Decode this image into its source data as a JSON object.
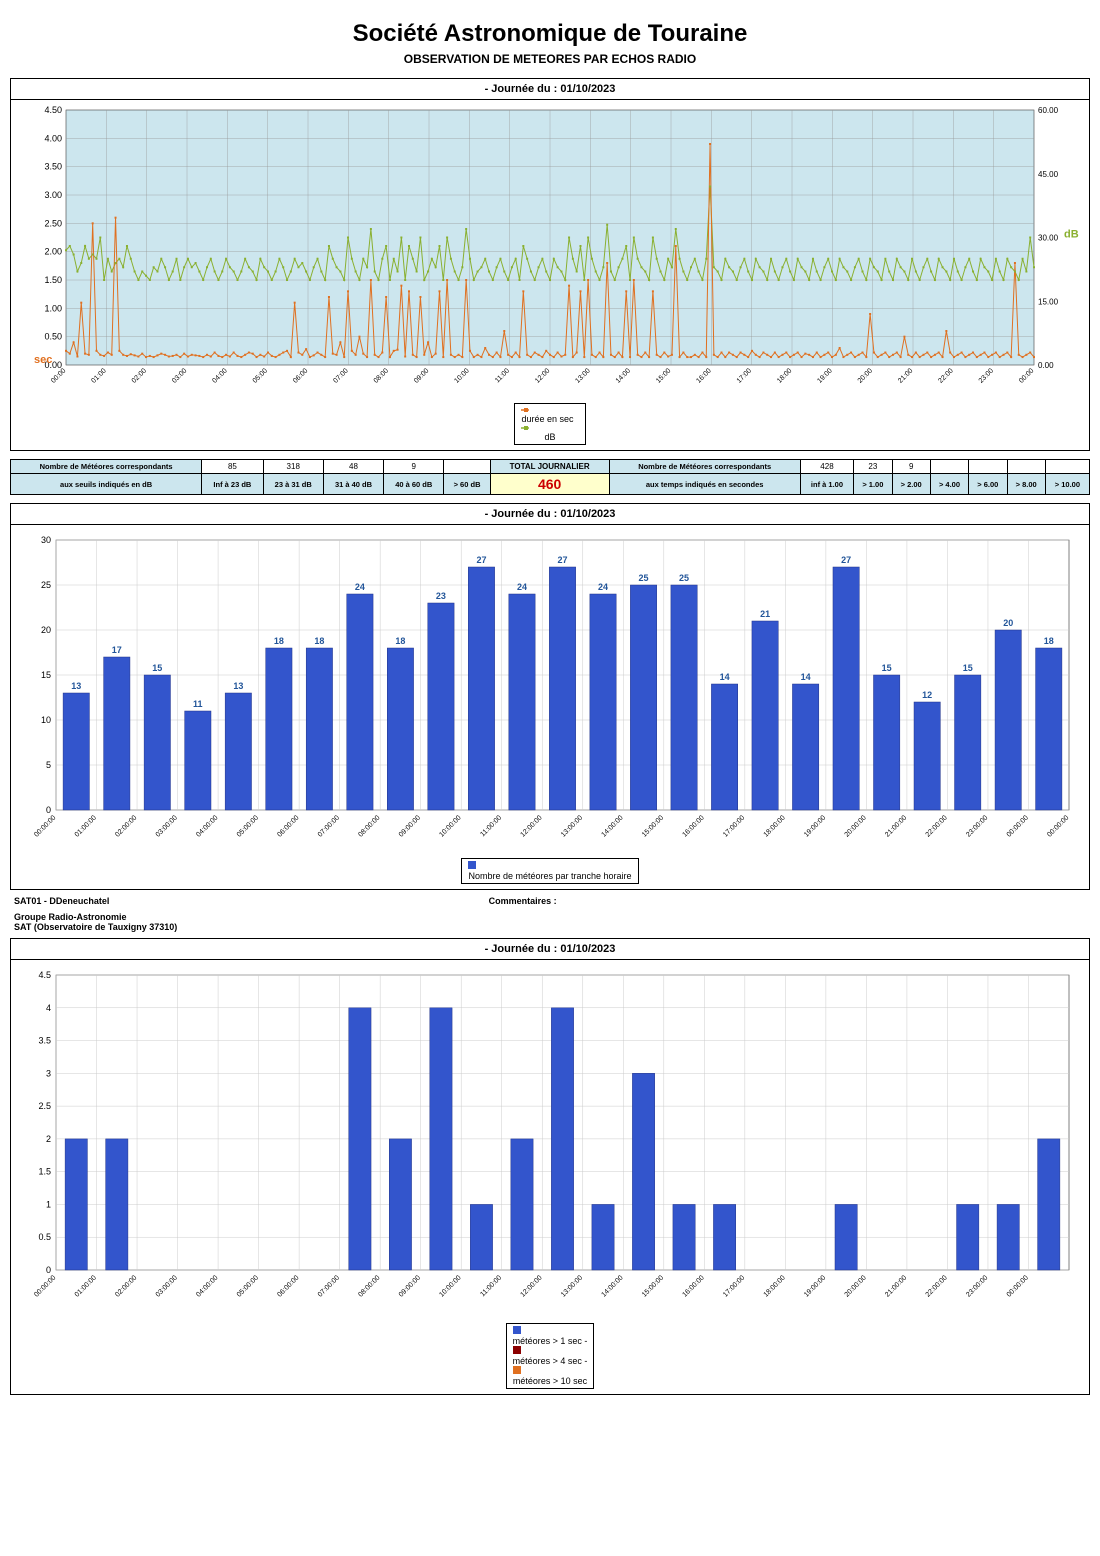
{
  "header": {
    "title": "Société Astronomique de Touraine",
    "subtitle": "OBSERVATION DE METEORES PAR ECHOS RADIO",
    "date_label": "- Journée du :   01/10/2023"
  },
  "colors": {
    "panel_bg": "#cce6ee",
    "grid": "#888888",
    "orange": "#e07020",
    "green": "#8ab030",
    "blue_bar": "#3355cc",
    "dark_red": "#8b0000",
    "border": "#000000"
  },
  "chart1": {
    "left_axis_label": "sec",
    "right_axis_label": "dB",
    "left_ylim": [
      0,
      4.5
    ],
    "left_ticks": [
      0,
      0.5,
      1,
      1.5,
      2,
      2.5,
      3,
      3.5,
      4,
      4.5
    ],
    "right_ylim": [
      0,
      60
    ],
    "right_ticks": [
      0,
      15,
      30,
      45,
      60
    ],
    "x_labels": [
      "00:00",
      "01:00",
      "02:00",
      "03:00",
      "04:00",
      "05:00",
      "06:00",
      "07:00",
      "08:00",
      "09:00",
      "10:00",
      "11:00",
      "12:00",
      "13:00",
      "14:00",
      "15:00",
      "16:00",
      "17:00",
      "18:00",
      "19:00",
      "20:00",
      "21:00",
      "22:00",
      "23:00",
      "00:00"
    ],
    "legend": [
      "durée en sec",
      "dB"
    ],
    "series_sec": [
      0.25,
      0.2,
      0.4,
      0.15,
      1.1,
      0.2,
      0.18,
      2.5,
      0.25,
      0.18,
      0.16,
      0.22,
      0.18,
      2.6,
      0.25,
      0.18,
      0.16,
      0.19,
      0.17,
      0.15,
      0.2,
      0.14,
      0.16,
      0.14,
      0.17,
      0.2,
      0.18,
      0.15,
      0.16,
      0.18,
      0.14,
      0.2,
      0.15,
      0.18,
      0.17,
      0.16,
      0.14,
      0.18,
      0.15,
      0.22,
      0.16,
      0.14,
      0.18,
      0.15,
      0.22,
      0.16,
      0.14,
      0.18,
      0.22,
      0.2,
      0.14,
      0.18,
      0.15,
      0.22,
      0.16,
      0.14,
      0.18,
      0.22,
      0.25,
      0.14,
      1.1,
      0.22,
      0.18,
      0.28,
      0.14,
      0.17,
      0.22,
      0.18,
      0.14,
      1.2,
      0.2,
      0.18,
      0.4,
      0.14,
      1.3,
      0.25,
      0.18,
      0.5,
      0.2,
      0.14,
      1.5,
      0.18,
      0.14,
      0.22,
      1.2,
      0.14,
      0.25,
      0.27,
      1.4,
      0.15,
      1.3,
      0.18,
      0.14,
      1.2,
      0.18,
      0.4,
      0.14,
      0.2,
      1.3,
      0.14,
      1.5,
      0.18,
      0.14,
      0.18,
      0.14,
      1.5,
      0.25,
      0.14,
      0.18,
      0.14,
      0.3,
      0.18,
      0.14,
      0.22,
      0.14,
      0.6,
      0.18,
      0.14,
      0.22,
      0.14,
      1.3,
      0.18,
      0.14,
      0.22,
      0.18,
      0.14,
      0.25,
      0.18,
      0.14,
      0.22,
      0.15,
      0.18,
      1.4,
      0.14,
      0.22,
      1.3,
      0.14,
      1.5,
      0.18,
      0.14,
      0.22,
      0.14,
      1.8,
      0.18,
      0.14,
      0.22,
      0.14,
      1.3,
      0.14,
      1.5,
      0.18,
      0.14,
      0.22,
      0.14,
      1.3,
      0.18,
      0.14,
      0.22,
      0.15,
      0.18,
      2.1,
      0.14,
      0.22,
      0.14,
      0.14,
      0.18,
      0.14,
      0.22,
      0.14,
      3.9,
      0.18,
      0.14,
      0.22,
      0.14,
      0.22,
      0.18,
      0.14,
      0.22,
      0.18,
      0.14,
      0.25,
      0.18,
      0.14,
      0.22,
      0.18,
      0.14,
      0.22,
      0.14,
      0.18,
      0.22,
      0.14,
      0.18,
      0.22,
      0.14,
      0.2,
      0.18,
      0.14,
      0.22,
      0.14,
      0.18,
      0.22,
      0.14,
      0.18,
      0.3,
      0.14,
      0.18,
      0.22,
      0.14,
      0.18,
      0.22,
      0.14,
      0.9,
      0.22,
      0.14,
      0.18,
      0.22,
      0.14,
      0.18,
      0.22,
      0.14,
      0.5,
      0.18,
      0.14,
      0.22,
      0.14,
      0.18,
      0.22,
      0.14,
      0.18,
      0.22,
      0.14,
      0.6,
      0.22,
      0.14,
      0.18,
      0.22,
      0.14,
      0.18,
      0.22,
      0.14,
      0.18,
      0.22,
      0.14,
      0.18,
      0.22,
      0.14,
      0.18,
      0.22,
      0.14,
      1.8,
      0.18,
      0.14,
      0.18,
      0.22,
      0.14
    ],
    "series_db": [
      27,
      28,
      26,
      22,
      24,
      28,
      25,
      26,
      25,
      30,
      20,
      25,
      22,
      24,
      25,
      23,
      28,
      25,
      22,
      20,
      22,
      21,
      20,
      23,
      22,
      25,
      23,
      20,
      22,
      25,
      20,
      23,
      25,
      23,
      24,
      22,
      20,
      23,
      25,
      22,
      20,
      22,
      25,
      23,
      22,
      20,
      22,
      25,
      23,
      22,
      20,
      25,
      23,
      22,
      20,
      22,
      25,
      23,
      20,
      22,
      25,
      23,
      24,
      22,
      20,
      23,
      25,
      22,
      20,
      28,
      25,
      23,
      22,
      20,
      30,
      25,
      22,
      20,
      25,
      23,
      32,
      22,
      20,
      25,
      28,
      20,
      25,
      22,
      30,
      20,
      28,
      25,
      22,
      30,
      20,
      22,
      25,
      23,
      28,
      20,
      30,
      25,
      22,
      20,
      23,
      32,
      25,
      20,
      22,
      23,
      25,
      22,
      20,
      23,
      25,
      22,
      20,
      23,
      25,
      20,
      28,
      25,
      22,
      20,
      23,
      25,
      22,
      20,
      25,
      23,
      22,
      20,
      30,
      25,
      22,
      28,
      20,
      30,
      25,
      22,
      20,
      23,
      33,
      22,
      20,
      23,
      25,
      28,
      20,
      30,
      25,
      23,
      22,
      20,
      30,
      25,
      22,
      20,
      25,
      23,
      32,
      25,
      22,
      20,
      23,
      25,
      22,
      20,
      25,
      42,
      23,
      22,
      20,
      25,
      23,
      22,
      20,
      23,
      25,
      22,
      20,
      25,
      23,
      22,
      20,
      25,
      22,
      20,
      23,
      25,
      22,
      20,
      25,
      23,
      22,
      20,
      25,
      22,
      20,
      23,
      25,
      22,
      20,
      25,
      23,
      22,
      20,
      23,
      25,
      22,
      20,
      25,
      23,
      22,
      20,
      25,
      22,
      20,
      25,
      23,
      22,
      20,
      25,
      22,
      20,
      23,
      25,
      22,
      20,
      25,
      23,
      22,
      20,
      25,
      22,
      20,
      23,
      25,
      22,
      20,
      25,
      23,
      22,
      20,
      25,
      22,
      20,
      25,
      23,
      22,
      20,
      25,
      22,
      30,
      23
    ]
  },
  "stats": {
    "left_header1": "Nombre de Météores correspondants",
    "left_header2": "aux seuils indiqués en dB",
    "db_cols": [
      "Inf à 23 dB",
      "23 à 31 dB",
      "31 à 40 dB",
      "40 à 60 dB",
      "> 60 dB"
    ],
    "db_vals": [
      "85",
      "318",
      "48",
      "9",
      ""
    ],
    "total_label": "TOTAL JOURNALIER",
    "total_val": "460",
    "right_header1": "Nombre de Météores correspondants",
    "right_header2": "aux temps indiqués en secondes",
    "sec_cols": [
      "inf à 1.00",
      "> 1.00",
      "> 2.00",
      "> 4.00",
      "> 6.00",
      "> 8.00",
      "> 10.00"
    ],
    "sec_vals": [
      "428",
      "23",
      "9",
      "",
      "",
      "",
      ""
    ]
  },
  "chart2": {
    "ylim": [
      0,
      30
    ],
    "yticks": [
      0,
      5,
      10,
      15,
      20,
      25,
      30
    ],
    "x_labels": [
      "00:00:00",
      "01:00:00",
      "02:00:00",
      "03:00:00",
      "04:00:00",
      "05:00:00",
      "06:00:00",
      "07:00:00",
      "08:00:00",
      "09:00:00",
      "10:00:00",
      "11:00:00",
      "12:00:00",
      "13:00:00",
      "14:00:00",
      "15:00:00",
      "16:00:00",
      "17:00:00",
      "18:00:00",
      "19:00:00",
      "20:00:00",
      "21:00:00",
      "22:00:00",
      "23:00:00",
      "00:00:00"
    ],
    "values": [
      13,
      17,
      15,
      11,
      13,
      18,
      18,
      24,
      18,
      23,
      27,
      24,
      27,
      24,
      25,
      25,
      14,
      21,
      14,
      27,
      15,
      12,
      15,
      20,
      18
    ],
    "legend": "Nombre de météores par tranche horaire"
  },
  "footer": {
    "author": "SAT01 - DDeneuchatel",
    "group1": "Groupe Radio-Astronomie",
    "group2": "SAT (Observatoire de Tauxigny 37310)",
    "comments_label": "Commentaires :"
  },
  "chart3": {
    "ylim": [
      0,
      4.5
    ],
    "yticks": [
      0,
      0.5,
      1,
      1.5,
      2,
      2.5,
      3,
      3.5,
      4,
      4.5
    ],
    "x_labels": [
      "00:00:00",
      "01:00:00",
      "02:00:00",
      "03:00:00",
      "04:00:00",
      "05:00:00",
      "06:00:00",
      "07:00:00",
      "08:00:00",
      "09:00:00",
      "10:00:00",
      "11:00:00",
      "12:00:00",
      "13:00:00",
      "14:00:00",
      "15:00:00",
      "16:00:00",
      "17:00:00",
      "18:00:00",
      "19:00:00",
      "20:00:00",
      "21:00:00",
      "22:00:00",
      "23:00:00",
      "00:00:00"
    ],
    "values": [
      2,
      2,
      0,
      0,
      0,
      0,
      0,
      4,
      2,
      4,
      1,
      2,
      4,
      1,
      3,
      1,
      1,
      0,
      0,
      1,
      0,
      0,
      1,
      1,
      2
    ],
    "legend": [
      "météores > 1 sec   -",
      "météores > 4 sec   -",
      "météores > 10 sec"
    ],
    "legend_colors": [
      "#3355cc",
      "#8b0000",
      "#e07020"
    ]
  }
}
